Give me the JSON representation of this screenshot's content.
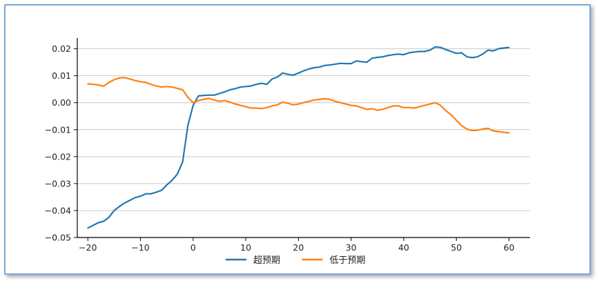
{
  "chart_data": {
    "type": "line",
    "title": "",
    "xlabel": "",
    "ylabel": "",
    "xlim": [
      -22,
      64
    ],
    "ylim": [
      -0.05,
      0.024
    ],
    "x_ticks": [
      -20,
      -10,
      0,
      10,
      20,
      30,
      40,
      50,
      60
    ],
    "x_tick_labels": [
      "−20",
      "−10",
      "0",
      "10",
      "20",
      "30",
      "40",
      "50",
      "60"
    ],
    "y_ticks": [
      0.02,
      0.01,
      0.0,
      -0.01,
      -0.02,
      -0.03,
      -0.04,
      -0.05
    ],
    "y_tick_labels": [
      "0.02",
      "0.01",
      "0.00",
      "−0.01",
      "−0.02",
      "−0.03",
      "−0.04",
      "−0.05"
    ],
    "grid": "horizontal",
    "legend_position": "bottom-center",
    "series": [
      {
        "name": "超预期",
        "color": "#1f77b4",
        "x": [
          -20,
          -19,
          -18,
          -17,
          -16,
          -15,
          -14,
          -13,
          -12,
          -11,
          -10,
          -9,
          -8,
          -7,
          -6,
          -5,
          -4,
          -3,
          -2,
          -1,
          0,
          1,
          2,
          3,
          4,
          5,
          6,
          7,
          8,
          9,
          10,
          11,
          12,
          13,
          14,
          15,
          16,
          17,
          18,
          19,
          20,
          21,
          22,
          23,
          24,
          25,
          26,
          27,
          28,
          29,
          30,
          31,
          32,
          33,
          34,
          35,
          36,
          37,
          38,
          39,
          40,
          41,
          42,
          43,
          44,
          45,
          46,
          47,
          48,
          49,
          50,
          51,
          52,
          53,
          54,
          55,
          56,
          57,
          58,
          59,
          60
        ],
        "values": [
          -0.0465,
          -0.0455,
          -0.0445,
          -0.044,
          -0.0425,
          -0.04,
          -0.0385,
          -0.0372,
          -0.0362,
          -0.0352,
          -0.0347,
          -0.0338,
          -0.0338,
          -0.0332,
          -0.0325,
          -0.0305,
          -0.0288,
          -0.0265,
          -0.022,
          -0.0085,
          -0.001,
          0.0025,
          0.0027,
          0.0028,
          0.0028,
          0.0034,
          0.004,
          0.0048,
          0.0052,
          0.0058,
          0.006,
          0.0062,
          0.0068,
          0.0072,
          0.0068,
          0.0088,
          0.0095,
          0.011,
          0.0105,
          0.0102,
          0.011,
          0.0118,
          0.0125,
          0.013,
          0.0132,
          0.0138,
          0.014,
          0.0143,
          0.0146,
          0.0145,
          0.0145,
          0.0155,
          0.0152,
          0.015,
          0.0165,
          0.0168,
          0.017,
          0.0175,
          0.0178,
          0.018,
          0.0178,
          0.0185,
          0.0188,
          0.019,
          0.019,
          0.0195,
          0.0207,
          0.0205,
          0.0197,
          0.019,
          0.0183,
          0.0185,
          0.017,
          0.0167,
          0.017,
          0.018,
          0.0195,
          0.0192,
          0.02,
          0.0203,
          0.0205
        ]
      },
      {
        "name": "低于预期",
        "color": "#ff7f0e",
        "x": [
          -20,
          -19,
          -18,
          -17,
          -16,
          -15,
          -14,
          -13,
          -12,
          -11,
          -10,
          -9,
          -8,
          -7,
          -6,
          -5,
          -4,
          -3,
          -2,
          -1,
          0,
          1,
          2,
          3,
          4,
          5,
          6,
          7,
          8,
          9,
          10,
          11,
          12,
          13,
          14,
          15,
          16,
          17,
          18,
          19,
          20,
          21,
          22,
          23,
          24,
          25,
          26,
          27,
          28,
          29,
          30,
          31,
          32,
          33,
          34,
          35,
          36,
          37,
          38,
          39,
          40,
          41,
          42,
          43,
          44,
          45,
          46,
          47,
          48,
          49,
          50,
          51,
          52,
          53,
          54,
          55,
          56,
          57,
          58,
          59,
          60
        ],
        "values": [
          0.007,
          0.0068,
          0.0066,
          0.0061,
          0.0075,
          0.0085,
          0.0092,
          0.0093,
          0.0088,
          0.0082,
          0.0078,
          0.0075,
          0.0068,
          0.0062,
          0.0058,
          0.006,
          0.0058,
          0.0053,
          0.0048,
          0.002,
          0.0,
          0.0008,
          0.0012,
          0.0016,
          0.001,
          0.0005,
          0.0008,
          0.0002,
          -0.0005,
          -0.001,
          -0.0015,
          -0.002,
          -0.002,
          -0.0022,
          -0.0018,
          -0.0012,
          -0.0008,
          0.0002,
          -0.0002,
          -0.0008,
          -0.0005,
          0.0,
          0.0005,
          0.001,
          0.0012,
          0.0015,
          0.0012,
          0.0005,
          0.0,
          -0.0005,
          -0.001,
          -0.0012,
          -0.0018,
          -0.0025,
          -0.0022,
          -0.0028,
          -0.0025,
          -0.0018,
          -0.0012,
          -0.0012,
          -0.0018,
          -0.0018,
          -0.002,
          -0.0015,
          -0.001,
          -0.0005,
          0.0,
          -0.001,
          -0.003,
          -0.0045,
          -0.0065,
          -0.0085,
          -0.0098,
          -0.0103,
          -0.0102,
          -0.0098,
          -0.0095,
          -0.0105,
          -0.0107,
          -0.011,
          -0.0112
        ]
      }
    ]
  }
}
